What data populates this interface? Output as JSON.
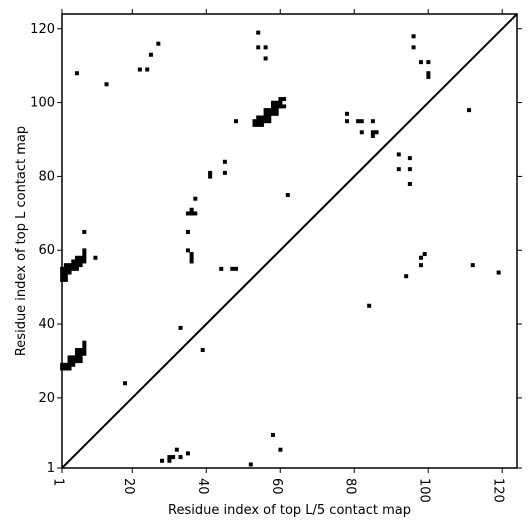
{
  "chart_data": {
    "type": "heatmap",
    "title": "",
    "xlabel": "Residue index of top L/5 contact map",
    "ylabel": "Residue index of top L contact map",
    "xlim": [
      1,
      124
    ],
    "ylim": [
      1,
      124
    ],
    "x_ticks": [
      1,
      20,
      40,
      60,
      80,
      100,
      120
    ],
    "y_ticks": [
      1,
      20,
      40,
      60,
      80,
      100,
      120
    ],
    "x_tick_labels": [
      "1",
      "20",
      "40",
      "60",
      "80",
      "100",
      "120"
    ],
    "y_tick_labels": [
      "1",
      "20",
      "40",
      "60",
      "80",
      "100",
      "120"
    ],
    "diagonal_line": true,
    "grid": false,
    "cell_color": "#000000",
    "upper_left_contacts_top_L": [
      [
        1,
        52
      ],
      [
        1,
        53
      ],
      [
        1,
        54
      ],
      [
        1,
        55
      ],
      [
        2,
        52
      ],
      [
        2,
        53
      ],
      [
        2,
        54
      ],
      [
        2,
        55
      ],
      [
        2,
        56
      ],
      [
        3,
        54
      ],
      [
        3,
        55
      ],
      [
        3,
        56
      ],
      [
        4,
        55
      ],
      [
        4,
        56
      ],
      [
        4,
        57
      ],
      [
        5,
        55
      ],
      [
        5,
        56
      ],
      [
        5,
        57
      ],
      [
        5,
        58
      ],
      [
        6,
        56
      ],
      [
        6,
        57
      ],
      [
        6,
        58
      ],
      [
        7,
        57
      ],
      [
        7,
        58
      ],
      [
        7,
        59
      ],
      [
        7,
        60
      ],
      [
        7,
        65
      ],
      [
        10,
        58
      ],
      [
        1,
        28
      ],
      [
        1,
        29
      ],
      [
        2,
        28
      ],
      [
        2,
        29
      ],
      [
        3,
        28
      ],
      [
        3,
        29
      ],
      [
        3,
        30
      ],
      [
        3,
        31
      ],
      [
        4,
        29
      ],
      [
        4,
        30
      ],
      [
        4,
        31
      ],
      [
        5,
        30
      ],
      [
        5,
        31
      ],
      [
        5,
        32
      ],
      [
        5,
        33
      ],
      [
        6,
        30
      ],
      [
        6,
        31
      ],
      [
        6,
        32
      ],
      [
        6,
        33
      ],
      [
        7,
        32
      ],
      [
        7,
        33
      ],
      [
        7,
        34
      ],
      [
        7,
        35
      ],
      [
        18,
        24
      ],
      [
        33,
        39
      ],
      [
        39,
        33
      ],
      [
        5,
        108
      ],
      [
        13,
        105
      ],
      [
        22,
        109
      ],
      [
        24,
        109
      ],
      [
        25,
        113
      ],
      [
        27,
        116
      ],
      [
        35,
        65
      ],
      [
        35,
        60
      ],
      [
        36,
        59
      ],
      [
        36,
        58
      ],
      [
        36,
        57
      ],
      [
        35,
        70
      ],
      [
        36,
        70
      ],
      [
        37,
        70
      ],
      [
        36,
        71
      ],
      [
        37,
        74
      ],
      [
        41,
        80
      ],
      [
        41,
        81
      ],
      [
        45,
        81
      ],
      [
        45,
        84
      ],
      [
        44,
        55
      ],
      [
        47,
        55
      ],
      [
        48,
        55
      ],
      [
        48,
        95
      ],
      [
        53,
        94
      ],
      [
        54,
        94
      ],
      [
        55,
        94
      ],
      [
        53,
        95
      ],
      [
        54,
        95
      ],
      [
        55,
        95
      ],
      [
        54,
        96
      ],
      [
        55,
        96
      ],
      [
        56,
        95
      ],
      [
        56,
        96
      ],
      [
        56,
        97
      ],
      [
        57,
        95
      ],
      [
        57,
        96
      ],
      [
        57,
        97
      ],
      [
        57,
        98
      ],
      [
        56,
        98
      ],
      [
        58,
        97
      ],
      [
        58,
        98
      ],
      [
        58,
        99
      ],
      [
        59,
        98
      ],
      [
        59,
        99
      ],
      [
        59,
        100
      ],
      [
        60,
        99
      ],
      [
        60,
        100
      ],
      [
        60,
        101
      ],
      [
        61,
        101
      ],
      [
        61,
        99
      ],
      [
        58,
        100
      ],
      [
        59,
        97
      ],
      [
        54,
        119
      ],
      [
        54,
        115
      ],
      [
        56,
        115
      ],
      [
        56,
        112
      ],
      [
        62,
        75
      ],
      [
        78,
        95
      ],
      [
        78,
        97
      ],
      [
        81,
        95
      ],
      [
        82,
        95
      ],
      [
        82,
        92
      ],
      [
        85,
        95
      ],
      [
        85,
        92
      ],
      [
        85,
        91
      ],
      [
        86,
        92
      ],
      [
        92,
        86
      ],
      [
        92,
        82
      ],
      [
        95,
        85
      ],
      [
        95,
        82
      ],
      [
        95,
        78
      ],
      [
        96,
        118
      ],
      [
        96,
        115
      ],
      [
        98,
        111
      ],
      [
        100,
        111
      ],
      [
        100,
        108
      ],
      [
        100,
        107
      ],
      [
        111,
        98
      ],
      [
        94,
        53
      ],
      [
        98,
        56
      ],
      [
        98,
        58
      ],
      [
        99,
        59
      ],
      [
        84,
        45
      ],
      [
        112,
        56
      ],
      [
        119,
        54
      ]
    ],
    "lower_right_contacts_top_L5": [
      [
        28,
        3
      ],
      [
        30,
        3
      ],
      [
        30,
        4
      ],
      [
        31,
        4
      ],
      [
        32,
        6
      ],
      [
        33,
        4
      ],
      [
        35,
        5
      ],
      [
        52,
        2
      ],
      [
        58,
        10
      ],
      [
        60,
        6
      ]
    ]
  }
}
